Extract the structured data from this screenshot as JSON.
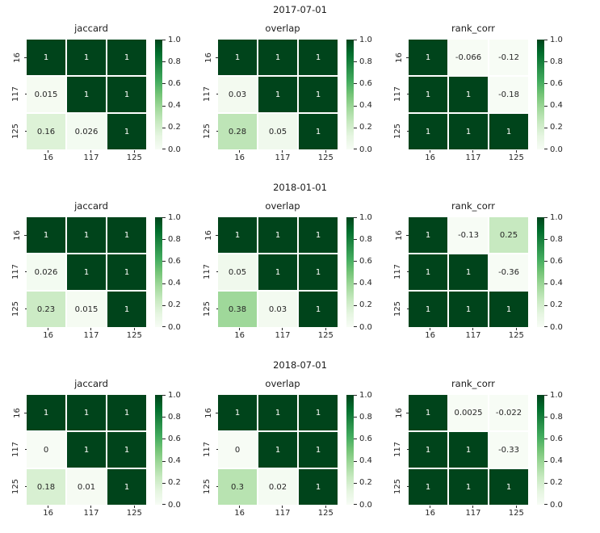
{
  "colors": {
    "background": "#ffffff",
    "annot_on_dark": "#ffffff",
    "annot_on_light": "#262626",
    "tick_color": "#262626",
    "title_color": "#1b1b1b",
    "greens_stops": [
      "#f7fcf5",
      "#e5f5e0",
      "#c7e9c0",
      "#a1d99b",
      "#74c476",
      "#41ab5d",
      "#238b45",
      "#006d2c",
      "#00441b"
    ]
  },
  "colorbar": {
    "ticks": [
      "1.0",
      "0.8",
      "0.6",
      "0.4",
      "0.2",
      "0.0"
    ],
    "tick_values": [
      1.0,
      0.8,
      0.6,
      0.4,
      0.2,
      0.0
    ],
    "vmin": 0.0,
    "vmax": 1.0
  },
  "chart_data": [
    {
      "type": "heatmap",
      "suptitle": "2017-07-01",
      "subplots": [
        {
          "title": "jaccard",
          "x_ticklabels": [
            "16",
            "117",
            "125"
          ],
          "y_ticklabels": [
            "16",
            "117",
            "125"
          ],
          "values": [
            [
              1,
              1,
              1
            ],
            [
              0.015,
              1,
              1
            ],
            [
              0.16,
              0.026,
              1
            ]
          ],
          "annotations": [
            [
              "1",
              "1",
              "1"
            ],
            [
              "0.015",
              "1",
              "1"
            ],
            [
              "0.16",
              "0.026",
              "1"
            ]
          ]
        },
        {
          "title": "overlap",
          "x_ticklabels": [
            "16",
            "117",
            "125"
          ],
          "y_ticklabels": [
            "16",
            "117",
            "125"
          ],
          "values": [
            [
              1,
              1,
              1
            ],
            [
              0.03,
              1,
              1
            ],
            [
              0.28,
              0.05,
              1
            ]
          ],
          "annotations": [
            [
              "1",
              "1",
              "1"
            ],
            [
              "0.03",
              "1",
              "1"
            ],
            [
              "0.28",
              "0.05",
              "1"
            ]
          ]
        },
        {
          "title": "rank_corr",
          "x_ticklabels": [
            "16",
            "117",
            "125"
          ],
          "y_ticklabels": [
            "16",
            "117",
            "125"
          ],
          "values": [
            [
              1,
              -0.066,
              -0.12
            ],
            [
              1,
              1,
              -0.18
            ],
            [
              1,
              1,
              1
            ]
          ],
          "annotations": [
            [
              "1",
              "-0.066",
              "-0.12"
            ],
            [
              "1",
              "1",
              "-0.18"
            ],
            [
              "1",
              "1",
              "1"
            ]
          ]
        }
      ]
    },
    {
      "type": "heatmap",
      "suptitle": "2018-01-01",
      "subplots": [
        {
          "title": "jaccard",
          "x_ticklabels": [
            "16",
            "117",
            "125"
          ],
          "y_ticklabels": [
            "16",
            "117",
            "125"
          ],
          "values": [
            [
              1,
              1,
              1
            ],
            [
              0.026,
              1,
              1
            ],
            [
              0.23,
              0.015,
              1
            ]
          ],
          "annotations": [
            [
              "1",
              "1",
              "1"
            ],
            [
              "0.026",
              "1",
              "1"
            ],
            [
              "0.23",
              "0.015",
              "1"
            ]
          ]
        },
        {
          "title": "overlap",
          "x_ticklabels": [
            "16",
            "117",
            "125"
          ],
          "y_ticklabels": [
            "16",
            "117",
            "125"
          ],
          "values": [
            [
              1,
              1,
              1
            ],
            [
              0.05,
              1,
              1
            ],
            [
              0.38,
              0.03,
              1
            ]
          ],
          "annotations": [
            [
              "1",
              "1",
              "1"
            ],
            [
              "0.05",
              "1",
              "1"
            ],
            [
              "0.38",
              "0.03",
              "1"
            ]
          ]
        },
        {
          "title": "rank_corr",
          "x_ticklabels": [
            "16",
            "117",
            "125"
          ],
          "y_ticklabels": [
            "16",
            "117",
            "125"
          ],
          "values": [
            [
              1,
              -0.13,
              0.25
            ],
            [
              1,
              1,
              -0.36
            ],
            [
              1,
              1,
              1
            ]
          ],
          "annotations": [
            [
              "1",
              "-0.13",
              "0.25"
            ],
            [
              "1",
              "1",
              "-0.36"
            ],
            [
              "1",
              "1",
              "1"
            ]
          ]
        }
      ]
    },
    {
      "type": "heatmap",
      "suptitle": "2018-07-01",
      "subplots": [
        {
          "title": "jaccard",
          "x_ticklabels": [
            "16",
            "117",
            "125"
          ],
          "y_ticklabels": [
            "16",
            "117",
            "125"
          ],
          "values": [
            [
              1,
              1,
              1
            ],
            [
              0,
              1,
              1
            ],
            [
              0.18,
              0.01,
              1
            ]
          ],
          "annotations": [
            [
              "1",
              "1",
              "1"
            ],
            [
              "0",
              "1",
              "1"
            ],
            [
              "0.18",
              "0.01",
              "1"
            ]
          ]
        },
        {
          "title": "overlap",
          "x_ticklabels": [
            "16",
            "117",
            "125"
          ],
          "y_ticklabels": [
            "16",
            "117",
            "125"
          ],
          "values": [
            [
              1,
              1,
              1
            ],
            [
              0,
              1,
              1
            ],
            [
              0.3,
              0.02,
              1
            ]
          ],
          "annotations": [
            [
              "1",
              "1",
              "1"
            ],
            [
              "0",
              "1",
              "1"
            ],
            [
              "0.3",
              "0.02",
              "1"
            ]
          ]
        },
        {
          "title": "rank_corr",
          "x_ticklabels": [
            "16",
            "117",
            "125"
          ],
          "y_ticklabels": [
            "16",
            "117",
            "125"
          ],
          "values": [
            [
              1,
              0.0025,
              -0.022
            ],
            [
              1,
              1,
              -0.33
            ],
            [
              1,
              1,
              1
            ]
          ],
          "annotations": [
            [
              "1",
              "0.0025",
              "-0.022"
            ],
            [
              "1",
              "1",
              "-0.33"
            ],
            [
              "1",
              "1",
              "1"
            ]
          ]
        }
      ]
    }
  ]
}
